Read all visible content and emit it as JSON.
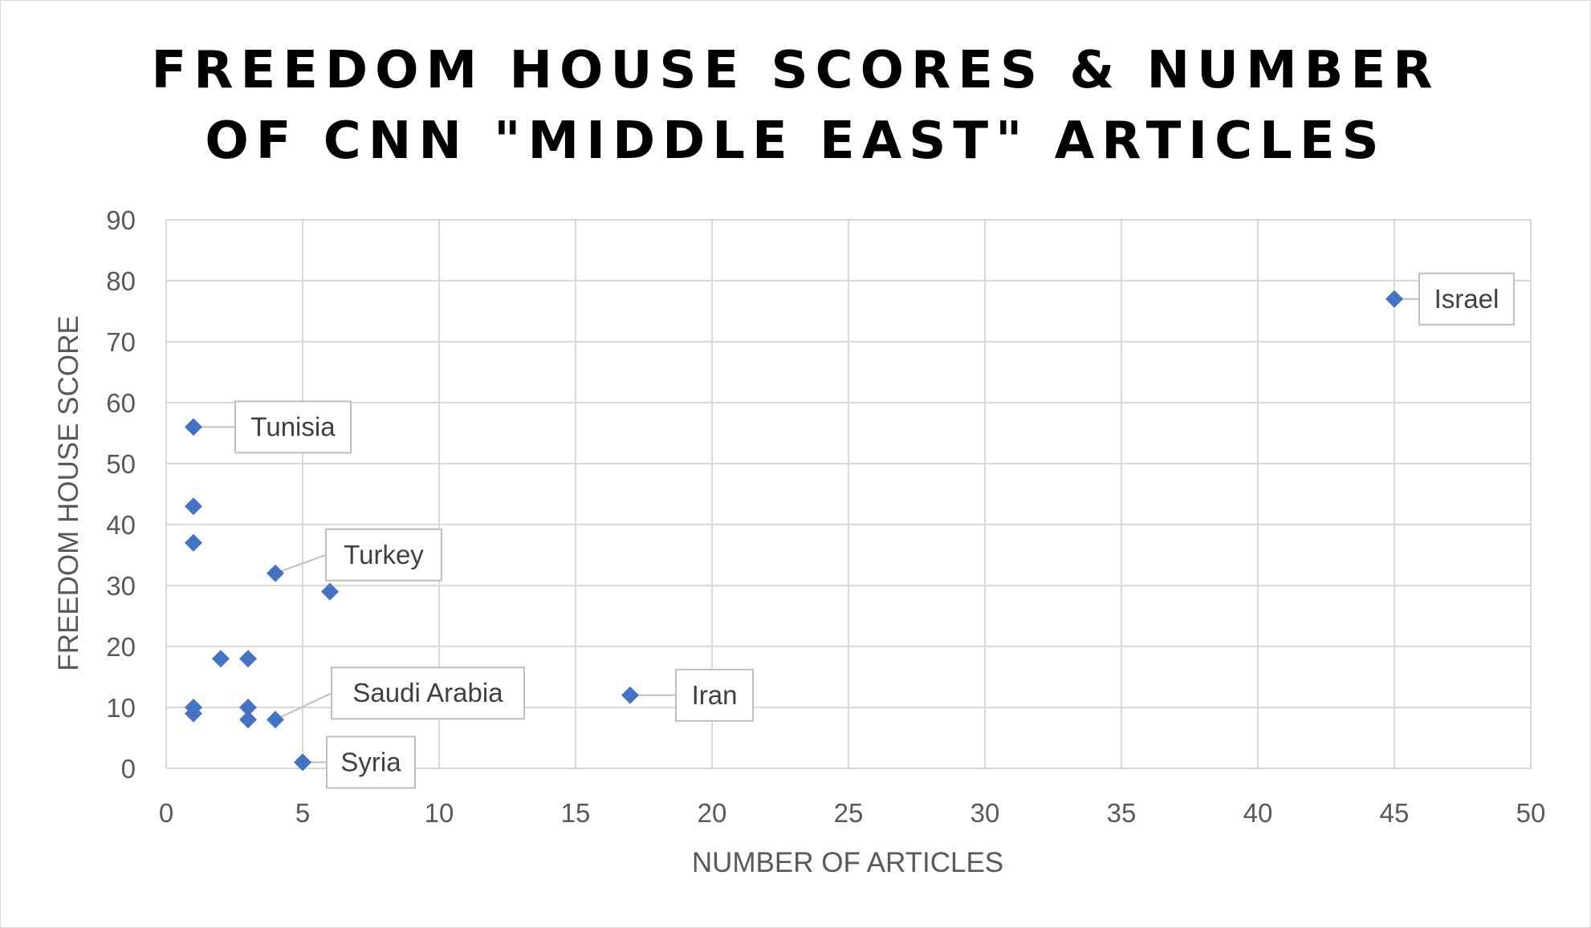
{
  "chart_data": {
    "type": "scatter",
    "title_lines": [
      "FREEDOM HOUSE SCORES & NUMBER",
      "OF CNN \"MIDDLE EAST\" ARTICLES"
    ],
    "xlabel": "NUMBER OF ARTICLES",
    "ylabel": "FREEDOM HOUSE SCORE",
    "xlim": [
      0,
      50
    ],
    "ylim": [
      0,
      90
    ],
    "x_ticks": [
      0,
      5,
      10,
      15,
      20,
      25,
      30,
      35,
      40,
      45,
      50
    ],
    "y_ticks": [
      0,
      10,
      20,
      30,
      40,
      50,
      60,
      70,
      80,
      90
    ],
    "grid": true,
    "marker": "diamond",
    "marker_color": "#4472c4",
    "gridline_color": "#d9d9d9",
    "points": [
      {
        "x": 45,
        "y": 77,
        "label": "Israel"
      },
      {
        "x": 1,
        "y": 56,
        "label": "Tunisia"
      },
      {
        "x": 1,
        "y": 43,
        "label": ""
      },
      {
        "x": 1,
        "y": 37,
        "label": ""
      },
      {
        "x": 4,
        "y": 32,
        "label": "Turkey"
      },
      {
        "x": 6,
        "y": 29,
        "label": ""
      },
      {
        "x": 2,
        "y": 18,
        "label": ""
      },
      {
        "x": 3,
        "y": 18,
        "label": ""
      },
      {
        "x": 17,
        "y": 12,
        "label": "Iran"
      },
      {
        "x": 1,
        "y": 10,
        "label": ""
      },
      {
        "x": 1,
        "y": 9,
        "label": ""
      },
      {
        "x": 3,
        "y": 10,
        "label": ""
      },
      {
        "x": 3,
        "y": 8,
        "label": ""
      },
      {
        "x": 4,
        "y": 8,
        "label": "Saudi Arabia"
      },
      {
        "x": 5,
        "y": 1,
        "label": "Syria"
      }
    ]
  }
}
